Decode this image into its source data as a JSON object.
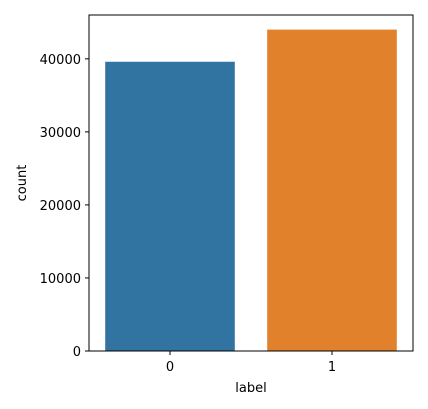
{
  "chart_data": {
    "type": "bar",
    "categories": [
      "0",
      "1"
    ],
    "values": [
      39600,
      44000
    ],
    "colors": [
      "#3274a1",
      "#e1812c"
    ],
    "xlabel": "label",
    "ylabel": "count",
    "ylim": [
      0,
      46000
    ],
    "yticks": [
      0,
      10000,
      20000,
      30000,
      40000
    ],
    "ytick_labels": [
      "0",
      "10000",
      "20000",
      "30000",
      "40000"
    ],
    "grid": false,
    "legend": "none"
  }
}
